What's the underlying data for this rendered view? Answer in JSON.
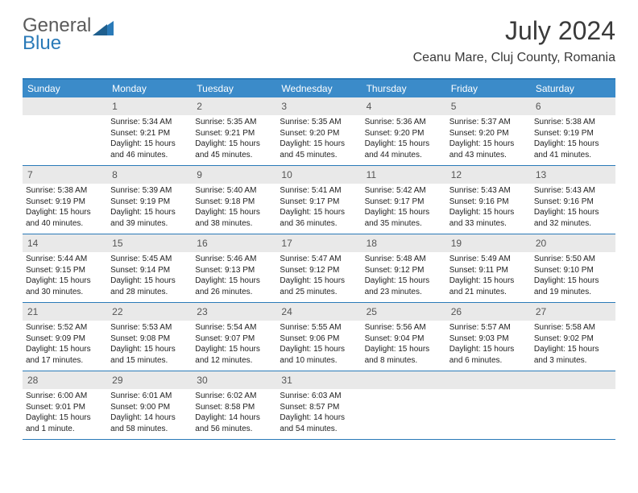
{
  "logo": {
    "line1": "General",
    "line2": "Blue"
  },
  "title": "July 2024",
  "location": "Ceanu Mare, Cluj County, Romania",
  "colors": {
    "header_bar": "#3b8bc9",
    "border": "#2a7ab8",
    "daynum_bg": "#e9e9e9",
    "text": "#222222",
    "title_text": "#3a3a3a"
  },
  "weekdays": [
    "Sunday",
    "Monday",
    "Tuesday",
    "Wednesday",
    "Thursday",
    "Friday",
    "Saturday"
  ],
  "weeks": [
    [
      {
        "n": "",
        "sunrise": "",
        "sunset": "",
        "daylight": ""
      },
      {
        "n": "1",
        "sunrise": "Sunrise: 5:34 AM",
        "sunset": "Sunset: 9:21 PM",
        "daylight": "Daylight: 15 hours and 46 minutes."
      },
      {
        "n": "2",
        "sunrise": "Sunrise: 5:35 AM",
        "sunset": "Sunset: 9:21 PM",
        "daylight": "Daylight: 15 hours and 45 minutes."
      },
      {
        "n": "3",
        "sunrise": "Sunrise: 5:35 AM",
        "sunset": "Sunset: 9:20 PM",
        "daylight": "Daylight: 15 hours and 45 minutes."
      },
      {
        "n": "4",
        "sunrise": "Sunrise: 5:36 AM",
        "sunset": "Sunset: 9:20 PM",
        "daylight": "Daylight: 15 hours and 44 minutes."
      },
      {
        "n": "5",
        "sunrise": "Sunrise: 5:37 AM",
        "sunset": "Sunset: 9:20 PM",
        "daylight": "Daylight: 15 hours and 43 minutes."
      },
      {
        "n": "6",
        "sunrise": "Sunrise: 5:38 AM",
        "sunset": "Sunset: 9:19 PM",
        "daylight": "Daylight: 15 hours and 41 minutes."
      }
    ],
    [
      {
        "n": "7",
        "sunrise": "Sunrise: 5:38 AM",
        "sunset": "Sunset: 9:19 PM",
        "daylight": "Daylight: 15 hours and 40 minutes."
      },
      {
        "n": "8",
        "sunrise": "Sunrise: 5:39 AM",
        "sunset": "Sunset: 9:19 PM",
        "daylight": "Daylight: 15 hours and 39 minutes."
      },
      {
        "n": "9",
        "sunrise": "Sunrise: 5:40 AM",
        "sunset": "Sunset: 9:18 PM",
        "daylight": "Daylight: 15 hours and 38 minutes."
      },
      {
        "n": "10",
        "sunrise": "Sunrise: 5:41 AM",
        "sunset": "Sunset: 9:17 PM",
        "daylight": "Daylight: 15 hours and 36 minutes."
      },
      {
        "n": "11",
        "sunrise": "Sunrise: 5:42 AM",
        "sunset": "Sunset: 9:17 PM",
        "daylight": "Daylight: 15 hours and 35 minutes."
      },
      {
        "n": "12",
        "sunrise": "Sunrise: 5:43 AM",
        "sunset": "Sunset: 9:16 PM",
        "daylight": "Daylight: 15 hours and 33 minutes."
      },
      {
        "n": "13",
        "sunrise": "Sunrise: 5:43 AM",
        "sunset": "Sunset: 9:16 PM",
        "daylight": "Daylight: 15 hours and 32 minutes."
      }
    ],
    [
      {
        "n": "14",
        "sunrise": "Sunrise: 5:44 AM",
        "sunset": "Sunset: 9:15 PM",
        "daylight": "Daylight: 15 hours and 30 minutes."
      },
      {
        "n": "15",
        "sunrise": "Sunrise: 5:45 AM",
        "sunset": "Sunset: 9:14 PM",
        "daylight": "Daylight: 15 hours and 28 minutes."
      },
      {
        "n": "16",
        "sunrise": "Sunrise: 5:46 AM",
        "sunset": "Sunset: 9:13 PM",
        "daylight": "Daylight: 15 hours and 26 minutes."
      },
      {
        "n": "17",
        "sunrise": "Sunrise: 5:47 AM",
        "sunset": "Sunset: 9:12 PM",
        "daylight": "Daylight: 15 hours and 25 minutes."
      },
      {
        "n": "18",
        "sunrise": "Sunrise: 5:48 AM",
        "sunset": "Sunset: 9:12 PM",
        "daylight": "Daylight: 15 hours and 23 minutes."
      },
      {
        "n": "19",
        "sunrise": "Sunrise: 5:49 AM",
        "sunset": "Sunset: 9:11 PM",
        "daylight": "Daylight: 15 hours and 21 minutes."
      },
      {
        "n": "20",
        "sunrise": "Sunrise: 5:50 AM",
        "sunset": "Sunset: 9:10 PM",
        "daylight": "Daylight: 15 hours and 19 minutes."
      }
    ],
    [
      {
        "n": "21",
        "sunrise": "Sunrise: 5:52 AM",
        "sunset": "Sunset: 9:09 PM",
        "daylight": "Daylight: 15 hours and 17 minutes."
      },
      {
        "n": "22",
        "sunrise": "Sunrise: 5:53 AM",
        "sunset": "Sunset: 9:08 PM",
        "daylight": "Daylight: 15 hours and 15 minutes."
      },
      {
        "n": "23",
        "sunrise": "Sunrise: 5:54 AM",
        "sunset": "Sunset: 9:07 PM",
        "daylight": "Daylight: 15 hours and 12 minutes."
      },
      {
        "n": "24",
        "sunrise": "Sunrise: 5:55 AM",
        "sunset": "Sunset: 9:06 PM",
        "daylight": "Daylight: 15 hours and 10 minutes."
      },
      {
        "n": "25",
        "sunrise": "Sunrise: 5:56 AM",
        "sunset": "Sunset: 9:04 PM",
        "daylight": "Daylight: 15 hours and 8 minutes."
      },
      {
        "n": "26",
        "sunrise": "Sunrise: 5:57 AM",
        "sunset": "Sunset: 9:03 PM",
        "daylight": "Daylight: 15 hours and 6 minutes."
      },
      {
        "n": "27",
        "sunrise": "Sunrise: 5:58 AM",
        "sunset": "Sunset: 9:02 PM",
        "daylight": "Daylight: 15 hours and 3 minutes."
      }
    ],
    [
      {
        "n": "28",
        "sunrise": "Sunrise: 6:00 AM",
        "sunset": "Sunset: 9:01 PM",
        "daylight": "Daylight: 15 hours and 1 minute."
      },
      {
        "n": "29",
        "sunrise": "Sunrise: 6:01 AM",
        "sunset": "Sunset: 9:00 PM",
        "daylight": "Daylight: 14 hours and 58 minutes."
      },
      {
        "n": "30",
        "sunrise": "Sunrise: 6:02 AM",
        "sunset": "Sunset: 8:58 PM",
        "daylight": "Daylight: 14 hours and 56 minutes."
      },
      {
        "n": "31",
        "sunrise": "Sunrise: 6:03 AM",
        "sunset": "Sunset: 8:57 PM",
        "daylight": "Daylight: 14 hours and 54 minutes."
      },
      {
        "n": "",
        "sunrise": "",
        "sunset": "",
        "daylight": ""
      },
      {
        "n": "",
        "sunrise": "",
        "sunset": "",
        "daylight": ""
      },
      {
        "n": "",
        "sunrise": "",
        "sunset": "",
        "daylight": ""
      }
    ]
  ]
}
